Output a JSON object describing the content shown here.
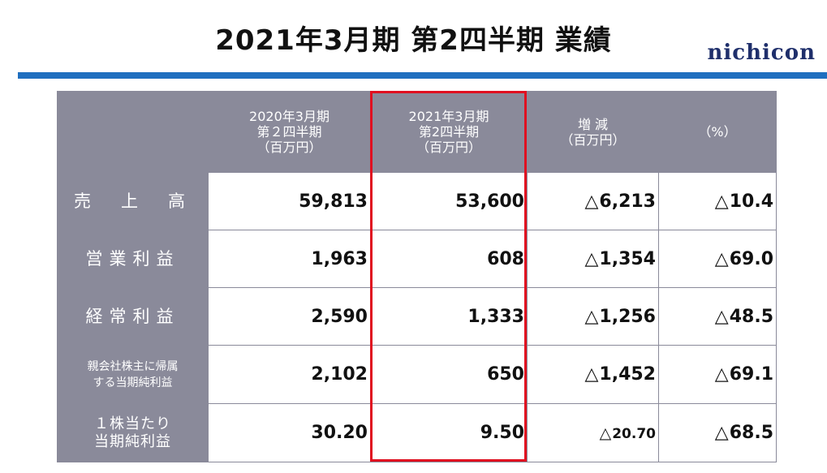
{
  "title": "2021年3月期 第2四半期 業績",
  "logo": "nichicon",
  "header": {
    "col1": [
      "2020年3月期",
      "第２四半期",
      "（百万円）"
    ],
    "col2": [
      "2021年3月期",
      "第2四半期",
      "（百万円）"
    ],
    "col3": [
      "増 減",
      "（百万円）"
    ],
    "col4": "（%）"
  },
  "rows": [
    {
      "label": [
        "売　上　高"
      ],
      "prev": "59,813",
      "curr": "53,600",
      "diff": "6,213",
      "pct": "10.4"
    },
    {
      "label": [
        "営業利益"
      ],
      "prev": "1,963",
      "curr": "608",
      "diff": "1,354",
      "pct": "69.0"
    },
    {
      "label": [
        "経常利益"
      ],
      "prev": "2,590",
      "curr": "1,333",
      "diff": "1,256",
      "pct": "48.5"
    },
    {
      "label": [
        "親会社株主に帰属",
        "する当期純利益"
      ],
      "prev": "2,102",
      "curr": "650",
      "diff": "1,452",
      "pct": "69.1"
    },
    {
      "label": [
        "１株当たり",
        "当期純利益"
      ],
      "prev": "30.20",
      "curr": "9.50",
      "diff": "20.70",
      "pct": "68.5"
    }
  ],
  "triangle": "△",
  "colors": {
    "header_bg": "#8a8a9a",
    "rule": "#1f6fbf",
    "highlight": "#e01020",
    "logo": "#1f2f6b"
  }
}
